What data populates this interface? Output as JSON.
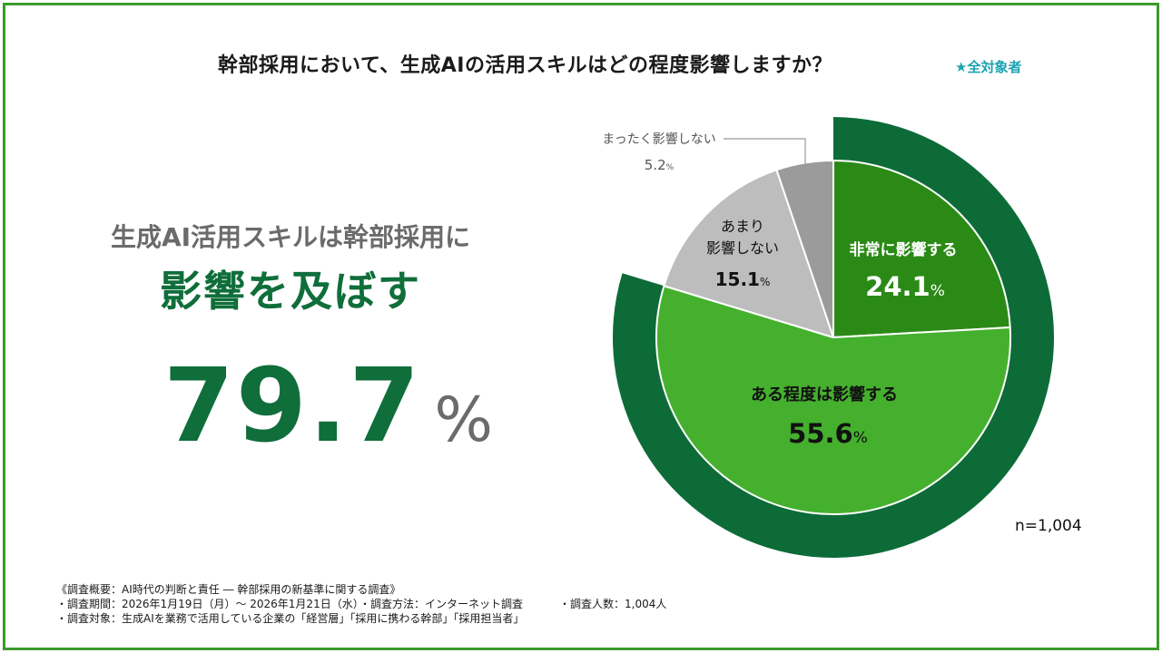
{
  "title": "幹部採用において、生成AIの活用スキルはどの程度影響しますか？",
  "target_label": "★全対象者",
  "summary": {
    "lead": "生成AI活用スキルは幹部採用に",
    "headline": "影響を及ぼす",
    "value": "79.7",
    "unit": "%"
  },
  "colors": {
    "outer_ring": "#0d6b38",
    "very": "#2b8a16",
    "somewhat": "#45b02e",
    "little": "#bdbdbd",
    "none": "#9b9b9b",
    "accent_text": "#0f6e3a",
    "target_text": "#1ba3b0"
  },
  "chart_data": {
    "type": "pie",
    "title": "幹部採用において、生成AIの活用スキルはどの程度影響しますか？",
    "note": "n=1,004",
    "unit": "%",
    "slices": [
      {
        "label": "非常に影響する",
        "value": 24.1
      },
      {
        "label": "ある程度は影響する",
        "value": 55.6
      },
      {
        "label": "あまり影響しない",
        "value": 15.1
      },
      {
        "label": "まったく影響しない",
        "value": 5.2
      }
    ],
    "outer_ring": {
      "value": 79.7
    }
  },
  "footer": {
    "line1": "《調査概要：AI時代の判断と責任 ― 幹部採用の新基準に関する調査》",
    "period": "・調査期間：2026年1月19日（月）〜 2026年1月21日（水）",
    "method": "・調査方法：インターネット調査",
    "respondents": "・調査人数：1,004人",
    "subjects": "・調査対象：生成AIを業務で活用している企業の「経営層」「採用に携わる幹部」「採用担当者」"
  }
}
